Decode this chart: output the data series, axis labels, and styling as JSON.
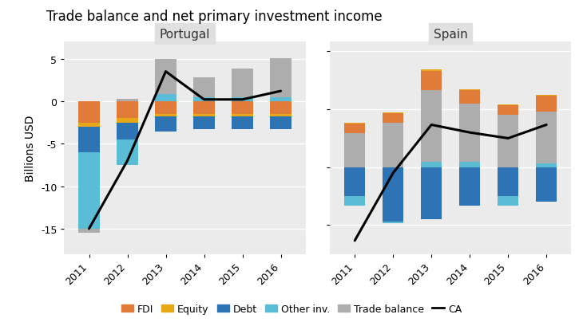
{
  "title": "Trade balance and net primary investment income",
  "years": [
    2011,
    2012,
    2013,
    2014,
    2015,
    2016
  ],
  "portugal": {
    "label": "Portugal",
    "fdi": [
      -2.5,
      -2.0,
      -1.5,
      -1.5,
      -1.5,
      -1.5
    ],
    "equity": [
      -0.5,
      -0.5,
      -0.3,
      -0.3,
      -0.3,
      -0.3
    ],
    "debt": [
      -3.0,
      -2.0,
      -1.8,
      -1.5,
      -1.5,
      -1.5
    ],
    "other_inv": [
      -9.0,
      -3.0,
      0.8,
      0.5,
      0.5,
      0.5
    ],
    "trade_balance": [
      -0.5,
      0.3,
      4.2,
      2.3,
      3.3,
      4.6
    ],
    "ca": [
      -15.0,
      -7.0,
      3.5,
      0.2,
      0.2,
      1.2
    ],
    "ylim": [
      -18,
      7
    ],
    "yticks": [
      -15,
      -10,
      -5,
      0,
      5
    ]
  },
  "spain": {
    "label": "Spain",
    "fdi": [
      5.0,
      5.0,
      10.0,
      7.0,
      5.0,
      8.0
    ],
    "equity": [
      0.5,
      0.5,
      0.5,
      0.5,
      0.5,
      0.5
    ],
    "debt": [
      -15.0,
      -28.0,
      -27.0,
      -20.0,
      -15.0,
      -18.0
    ],
    "other_inv": [
      -5.0,
      -1.0,
      3.0,
      3.0,
      -5.0,
      2.0
    ],
    "trade_balance": [
      17.5,
      23.0,
      37.0,
      30.0,
      27.0,
      27.0
    ],
    "ca": [
      -38.0,
      -3.0,
      22.0,
      18.0,
      15.0,
      22.0
    ],
    "ylim": [
      -45,
      65
    ],
    "yticks": [
      -30,
      0,
      30,
      60
    ]
  },
  "colors": {
    "fdi": "#E07B39",
    "equity": "#E6A817",
    "debt": "#2E74B5",
    "other_inv": "#5BBCD6",
    "trade_balance": "#ADADAD",
    "ca": "#000000"
  },
  "bar_width": 0.55,
  "panel_bg": "#E0E0E0",
  "plot_bg": "#EBEBEB",
  "ylabel": "Billions USD"
}
